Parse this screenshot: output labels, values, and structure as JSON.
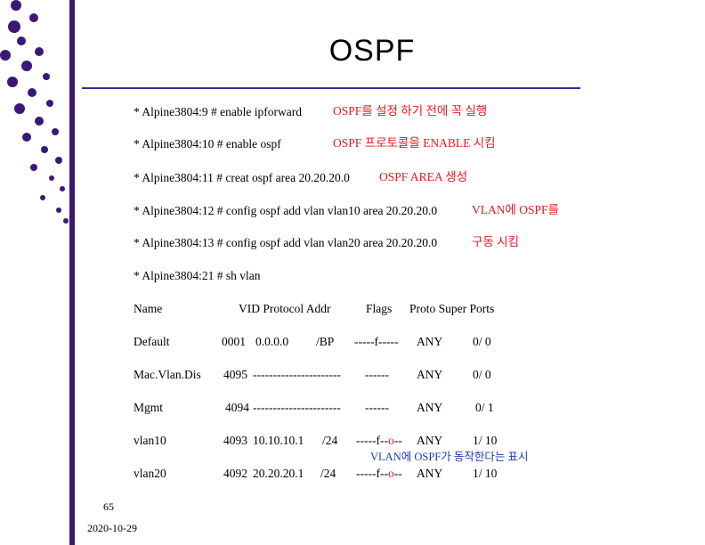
{
  "title": "OSPF",
  "commands": [
    {
      "cmd": "* Alpine3804:9 # enable ipforward",
      "note": "OSPF를 설정 하기 전에 꼭 실행"
    },
    {
      "cmd": "* Alpine3804:10 # enable ospf",
      "note": "OSPF 프로토콜을 ENABLE 시킴"
    },
    {
      "cmd": "* Alpine3804:11 # creat ospf area 20.20.20.0",
      "note": "OSPF AREA 생성"
    },
    {
      "cmd": "* Alpine3804:12 # config ospf add vlan vlan10 area 20.20.20.0",
      "note": "VLAN에 OSPF를"
    },
    {
      "cmd": "* Alpine3804:13 # config ospf add vlan vlan20 area 20.20.20.0",
      "note": "구동 시킴"
    },
    {
      "cmd": "* Alpine3804:21 # sh vlan",
      "note": ""
    }
  ],
  "table": {
    "headers": {
      "name": "Name",
      "vid_proto": "VID Protocol Addr",
      "flags": "Flags",
      "proto_super": "Proto Super Ports"
    },
    "rows": [
      {
        "name": "Default",
        "vid": "0001",
        "addr": "0.0.0.0",
        "mask": "/BP",
        "flags": "-----f-----",
        "proto": "ANY",
        "ports": "0/ 0"
      },
      {
        "name": "Mac.Vlan.Dis",
        "vid": "4095",
        "addr": "----------------------",
        "mask": "",
        "flags": "------",
        "proto": "ANY",
        "ports": "0/ 0"
      },
      {
        "name": "Mgmt",
        "vid": "4094",
        "addr": "----------------------",
        "mask": "",
        "flags": "------",
        "proto": "ANY",
        "ports": "0/ 1"
      },
      {
        "name": "vlan10",
        "vid": "4093",
        "addr": "10.10.10.1",
        "mask": "/24",
        "flags_a": "-----f--",
        "flags_b": "o",
        "flags_c": "--",
        "proto": "ANY",
        "ports": "1/ 10"
      },
      {
        "name": "vlan20",
        "vid": "4092",
        "addr": "20.20.20.1",
        "mask": "/24",
        "flags_a": "-----f--",
        "flags_b": "o",
        "flags_c": "--",
        "proto": "ANY",
        "ports": "1/ 10"
      }
    ],
    "ospf_note": "VLAN에 OSPF가 동작한다는 표시"
  },
  "footer": {
    "page": "65",
    "date": "2020-10-29"
  },
  "colors": {
    "accent": "#3a1878",
    "note_red": "#e8191f",
    "note_blue": "#1b3fb5"
  }
}
